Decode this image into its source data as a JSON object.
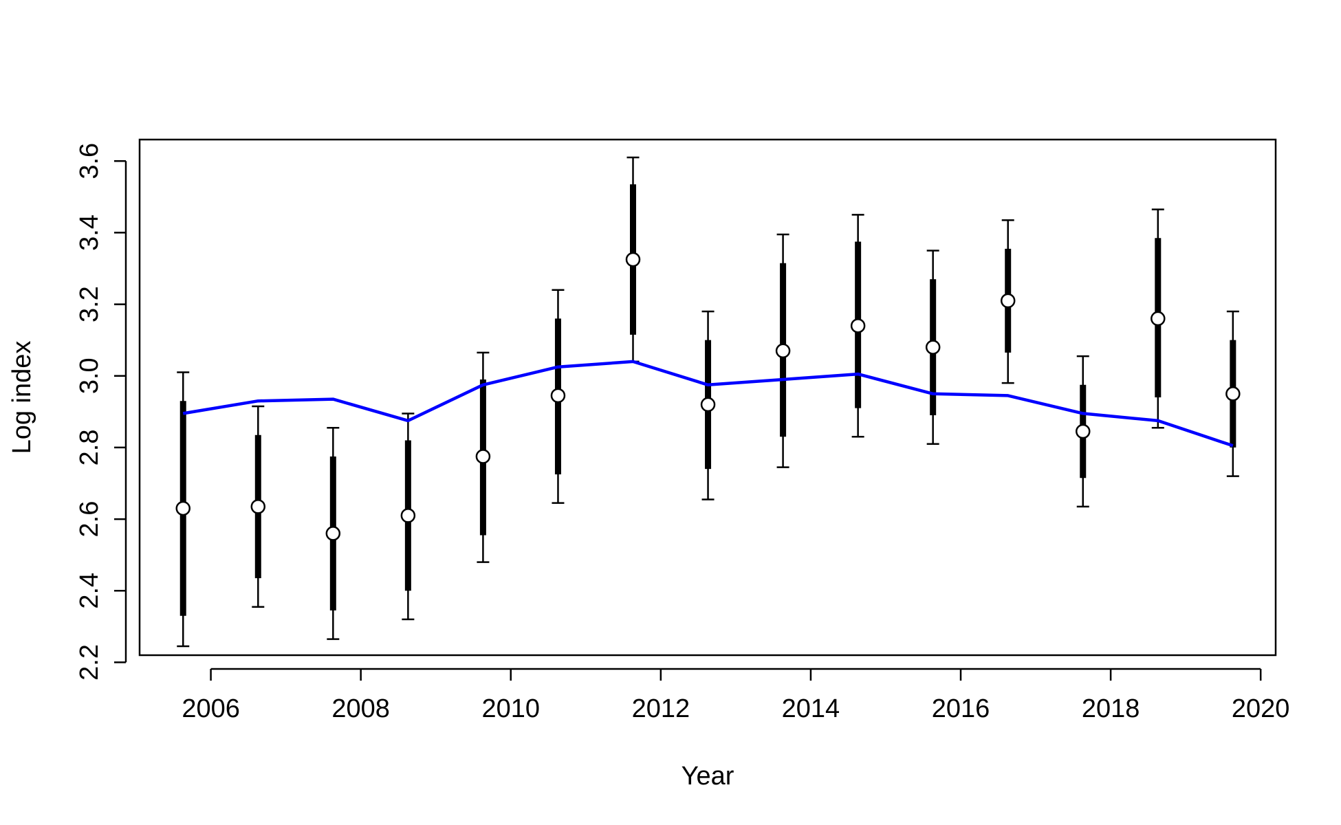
{
  "chart_data": {
    "type": "scatter",
    "title": "",
    "xlabel": "Year",
    "ylabel": "Log index",
    "xlim": [
      2005.05,
      2020.2
    ],
    "ylim": [
      2.22,
      3.66
    ],
    "xticks": [
      "2006",
      "2008",
      "2010",
      "2012",
      "2014",
      "2016",
      "2018",
      "2020"
    ],
    "yticks": [
      "2.2",
      "2.4",
      "2.6",
      "2.8",
      "3.0",
      "3.2",
      "3.4",
      "3.6"
    ],
    "grid": false,
    "legend": "none",
    "series": [
      {
        "kind": "points-with-intervals",
        "x": [
          2005.63,
          2006.63,
          2007.63,
          2008.63,
          2009.63,
          2010.63,
          2011.63,
          2012.63,
          2013.63,
          2014.63,
          2015.63,
          2016.63,
          2017.63,
          2018.63,
          2019.63
        ],
        "y": [
          2.63,
          2.635,
          2.56,
          2.61,
          2.775,
          2.945,
          3.325,
          2.92,
          3.07,
          3.14,
          3.08,
          3.21,
          2.845,
          3.16,
          2.95
        ],
        "inner_low": [
          2.33,
          2.435,
          2.345,
          2.4,
          2.555,
          2.725,
          3.115,
          2.74,
          2.83,
          2.91,
          2.89,
          3.065,
          2.715,
          2.94,
          2.8
        ],
        "inner_high": [
          2.93,
          2.835,
          2.775,
          2.82,
          2.99,
          3.16,
          3.535,
          3.1,
          3.315,
          3.375,
          3.27,
          3.355,
          2.975,
          3.385,
          3.1
        ],
        "outer_low": [
          2.245,
          2.355,
          2.265,
          2.32,
          2.48,
          2.645,
          3.04,
          2.655,
          2.745,
          2.83,
          2.81,
          2.98,
          2.635,
          2.855,
          2.72
        ],
        "outer_high": [
          3.01,
          2.915,
          2.855,
          2.895,
          3.065,
          3.24,
          3.61,
          3.18,
          3.395,
          3.45,
          3.35,
          3.435,
          3.055,
          3.465,
          3.18
        ]
      },
      {
        "kind": "line",
        "color": "#0000ff",
        "x": [
          2005.63,
          2006.63,
          2007.63,
          2008.63,
          2009.63,
          2010.63,
          2011.63,
          2012.63,
          2013.63,
          2014.63,
          2015.63,
          2016.63,
          2017.63,
          2018.63,
          2019.63
        ],
        "y": [
          2.895,
          2.93,
          2.935,
          2.875,
          2.975,
          3.025,
          3.04,
          2.975,
          2.99,
          3.005,
          2.95,
          2.945,
          2.895,
          2.875,
          2.805
        ]
      }
    ]
  }
}
